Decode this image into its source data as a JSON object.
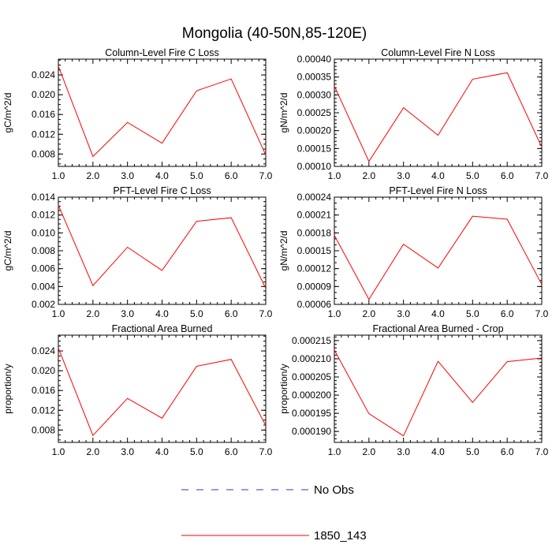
{
  "figure": {
    "title": "Mongolia (40-50N,85-120E)"
  },
  "colors": {
    "model": "#ff0000",
    "obs": "#3333cc",
    "frame": "#000000"
  },
  "legend": {
    "entries": [
      {
        "label": "No Obs",
        "style": "dashed",
        "color": "#3333cc"
      },
      {
        "label": "1850_143",
        "style": "solid",
        "color": "#ff0000"
      }
    ]
  },
  "chart_data": [
    {
      "type": "line",
      "title": "Column-Level Fire C Loss",
      "ylabel": "gC/m^2/d",
      "xlabel": "",
      "x": [
        1,
        2,
        3,
        4,
        5,
        6,
        7
      ],
      "xlim": [
        1,
        7
      ],
      "xticks": [
        "1.0",
        "2.0",
        "3.0",
        "4.0",
        "5.0",
        "6.0",
        "7.0"
      ],
      "ylim": [
        0.0055,
        0.0272
      ],
      "yticks": [
        0.008,
        0.012,
        0.016,
        0.02,
        0.024
      ],
      "ytick_labels": [
        "0.008",
        "0.012",
        "0.016",
        "0.020",
        "0.024"
      ],
      "yminor": 0.001,
      "series": [
        {
          "name": "1850_143",
          "values": [
            0.0258,
            0.0075,
            0.0144,
            0.0102,
            0.0208,
            0.0232,
            0.0078
          ]
        }
      ]
    },
    {
      "type": "line",
      "title": "Column-Level Fire N Loss",
      "ylabel": "gN/m^2/d",
      "xlabel": "",
      "x": [
        1,
        2,
        3,
        4,
        5,
        6,
        7
      ],
      "xlim": [
        1,
        7
      ],
      "xticks": [
        "1.0",
        "2.0",
        "3.0",
        "4.0",
        "5.0",
        "6.0",
        "7.0"
      ],
      "ylim": [
        0.0001,
        0.0004
      ],
      "yticks": [
        0.0001,
        0.00015,
        0.0002,
        0.00025,
        0.0003,
        0.00035,
        0.0004
      ],
      "ytick_labels": [
        "0.00010",
        "0.00015",
        "0.00020",
        "0.00025",
        "0.00030",
        "0.00035",
        "0.00040"
      ],
      "yminor": 1e-05,
      "series": [
        {
          "name": "1850_143",
          "values": [
            0.000325,
            0.000114,
            0.000264,
            0.000187,
            0.000344,
            0.000362,
            0.000154
          ]
        }
      ]
    },
    {
      "type": "line",
      "title": "PFT-Level Fire C Loss",
      "ylabel": "gC/m^2/d",
      "xlabel": "",
      "x": [
        1,
        2,
        3,
        4,
        5,
        6,
        7
      ],
      "xlim": [
        1,
        7
      ],
      "xticks": [
        "1.0",
        "2.0",
        "3.0",
        "4.0",
        "5.0",
        "6.0",
        "7.0"
      ],
      "ylim": [
        0.002,
        0.014
      ],
      "yticks": [
        0.002,
        0.004,
        0.006,
        0.008,
        0.01,
        0.012,
        0.014
      ],
      "ytick_labels": [
        "0.002",
        "0.004",
        "0.006",
        "0.008",
        "0.010",
        "0.012",
        "0.014"
      ],
      "yminor": 0.0005,
      "series": [
        {
          "name": "1850_143",
          "values": [
            0.0131,
            0.0041,
            0.0084,
            0.0058,
            0.0113,
            0.0117,
            0.0038
          ]
        }
      ]
    },
    {
      "type": "line",
      "title": "PFT-Level Fire N Loss",
      "ylabel": "gN/m^2/d",
      "xlabel": "",
      "x": [
        1,
        2,
        3,
        4,
        5,
        6,
        7
      ],
      "xlim": [
        1,
        7
      ],
      "xticks": [
        "1.0",
        "2.0",
        "3.0",
        "4.0",
        "5.0",
        "6.0",
        "7.0"
      ],
      "ylim": [
        6e-05,
        0.00024
      ],
      "yticks": [
        6e-05,
        9e-05,
        0.00012,
        0.00015,
        0.00018,
        0.00021,
        0.00024
      ],
      "ytick_labels": [
        "0.00006",
        "0.00009",
        "0.00012",
        "0.00015",
        "0.00018",
        "0.00021",
        "0.00024"
      ],
      "yminor": 1e-05,
      "series": [
        {
          "name": "1850_143",
          "values": [
            0.000176,
            6.85e-05,
            0.000161,
            0.000121,
            0.000208,
            0.000203,
            9.35e-05
          ]
        }
      ]
    },
    {
      "type": "line",
      "title": "Fractional Area Burned",
      "ylabel": "proportion/y",
      "xlabel": "",
      "x": [
        1,
        2,
        3,
        4,
        5,
        6,
        7
      ],
      "xlim": [
        1,
        7
      ],
      "xticks": [
        "1.0",
        "2.0",
        "3.0",
        "4.0",
        "5.0",
        "6.0",
        "7.0"
      ],
      "ylim": [
        0.0055,
        0.0272
      ],
      "yticks": [
        0.008,
        0.012,
        0.016,
        0.02,
        0.024
      ],
      "ytick_labels": [
        "0.008",
        "0.012",
        "0.016",
        "0.020",
        "0.024"
      ],
      "yminor": 0.001,
      "series": [
        {
          "name": "1850_143",
          "values": [
            0.0246,
            0.0069,
            0.0144,
            0.0104,
            0.0209,
            0.0223,
            0.0089
          ]
        }
      ]
    },
    {
      "type": "line",
      "title": "Fractional Area Burned - Crop",
      "ylabel": "proportion/y",
      "xlabel": "",
      "x": [
        1,
        2,
        3,
        4,
        5,
        6,
        7
      ],
      "xlim": [
        1,
        7
      ],
      "xticks": [
        "1.0",
        "2.0",
        "3.0",
        "4.0",
        "5.0",
        "6.0",
        "7.0"
      ],
      "ylim": [
        0.000187,
        0.0002165
      ],
      "yticks": [
        0.00019,
        0.000195,
        0.0002,
        0.000205,
        0.00021,
        0.000215
      ],
      "ytick_labels": [
        "0.000190",
        "0.000195",
        "0.000200",
        "0.000205",
        "0.000210",
        "0.000215"
      ],
      "yminor": 1e-06,
      "series": [
        {
          "name": "1850_143",
          "values": [
            0.0002124,
            0.0001949,
            0.0001888,
            0.0002093,
            0.000198,
            0.0002092,
            0.0002102
          ]
        }
      ]
    }
  ]
}
